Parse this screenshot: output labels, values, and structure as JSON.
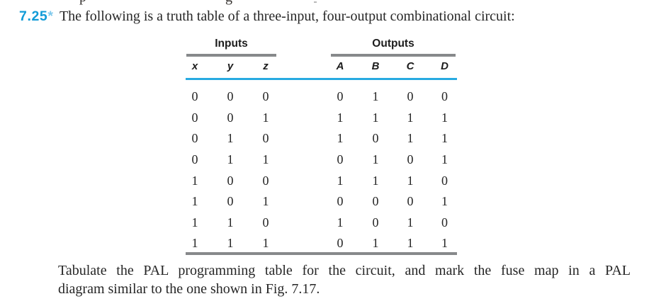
{
  "problem": {
    "number": "7.25",
    "star": "*",
    "statement": "The following is a truth table of a three-input, four-output combinational circuit:"
  },
  "truth_table": {
    "input_group_label": "Inputs",
    "output_group_label": "Outputs",
    "input_columns": [
      "x",
      "y",
      "z"
    ],
    "output_columns": [
      "A",
      "B",
      "C",
      "D"
    ],
    "rows": [
      {
        "inputs": [
          "0",
          "0",
          "0"
        ],
        "outputs": [
          "0",
          "1",
          "0",
          "0"
        ]
      },
      {
        "inputs": [
          "0",
          "0",
          "1"
        ],
        "outputs": [
          "1",
          "1",
          "1",
          "1"
        ]
      },
      {
        "inputs": [
          "0",
          "1",
          "0"
        ],
        "outputs": [
          "1",
          "0",
          "1",
          "1"
        ]
      },
      {
        "inputs": [
          "0",
          "1",
          "1"
        ],
        "outputs": [
          "0",
          "1",
          "0",
          "1"
        ]
      },
      {
        "inputs": [
          "1",
          "0",
          "0"
        ],
        "outputs": [
          "1",
          "1",
          "1",
          "0"
        ]
      },
      {
        "inputs": [
          "1",
          "0",
          "1"
        ],
        "outputs": [
          "0",
          "0",
          "0",
          "1"
        ]
      },
      {
        "inputs": [
          "1",
          "1",
          "0"
        ],
        "outputs": [
          "1",
          "0",
          "1",
          "0"
        ]
      },
      {
        "inputs": [
          "1",
          "1",
          "1"
        ],
        "outputs": [
          "0",
          "1",
          "1",
          "1"
        ]
      }
    ]
  },
  "instruction": {
    "full_text": "Tabulate the PAL programming table for the circuit, and mark the fuse map in a PAL diagram similar to the one shown in Fig. 7.17.",
    "lines": [
      "Tabulate the PAL programming table for the circuit, and mark the fuse map in a PAL",
      "diagram similar to the one shown in Fig. 7.17."
    ]
  },
  "cropped_previous_line": {
    "fragments": [
      "p",
      "g"
    ]
  },
  "colors": {
    "problem_number_blue": "#119bd7",
    "star_blue": "#7fc9ec",
    "table_rule_cyan": "#27aae1",
    "table_bar_gray": "#87898b",
    "body_text": "#262626"
  }
}
